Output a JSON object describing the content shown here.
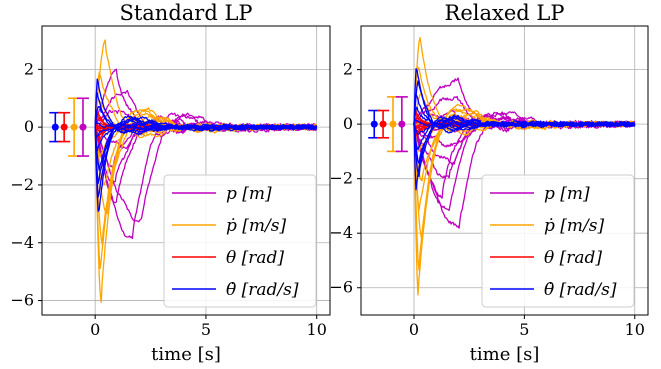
{
  "figure": {
    "background": "#ffffff"
  },
  "chart_data": [
    {
      "type": "line",
      "title": "Standard LP",
      "xlabel": "time [s]",
      "ylabel": "",
      "xlim": [
        -2.4,
        10.6
      ],
      "ylim": [
        -6.5,
        3.5
      ],
      "xticks": [
        0,
        5,
        10
      ],
      "yticks": [
        -6,
        -4,
        -2,
        0,
        2
      ],
      "grid": true,
      "legend_position": "lower-right",
      "legend": [
        {
          "label": "p  [m]",
          "color": "#bf00bf"
        },
        {
          "label": "ṗ  [m/s]",
          "color": "#ffa500"
        },
        {
          "label": "θ  [rad]",
          "color": "#ff0000"
        },
        {
          "label": "θ̇  [rad/s]",
          "color": "#0000ff"
        }
      ],
      "errorbars": [
        {
          "x": -1.8,
          "center": 0.0,
          "half_width": 0.5,
          "color": "#0000ff"
        },
        {
          "x": -1.4,
          "center": 0.0,
          "half_width": 0.5,
          "color": "#ff0000"
        },
        {
          "x": -0.95,
          "center": 0.0,
          "half_width": 1.0,
          "color": "#ffa500"
        },
        {
          "x": -0.55,
          "center": 0.0,
          "half_width": 1.0,
          "color": "#bf00bf"
        }
      ],
      "series_families": [
        {
          "name": "p",
          "color": "#bf00bf",
          "runs": 10,
          "peak_range": [
            -3.9,
            1.9
          ],
          "peak_time": [
            0.8,
            2.2
          ],
          "decay": 1.1,
          "noise": 0.12
        },
        {
          "name": "ṗ",
          "color": "#ffa500",
          "runs": 10,
          "peak_range": [
            -6.0,
            3.0
          ],
          "peak_time": [
            0.1,
            0.6
          ],
          "decay": 1.4,
          "noise": 0.1
        },
        {
          "name": "θ",
          "color": "#ff0000",
          "runs": 10,
          "peak_range": [
            -0.5,
            0.5
          ],
          "peak_time": [
            0.05,
            0.2
          ],
          "decay": 3.0,
          "noise": 0.05
        },
        {
          "name": "θ̇",
          "color": "#0000ff",
          "runs": 10,
          "peak_range": [
            -3.1,
            1.8
          ],
          "peak_time": [
            0.05,
            0.25
          ],
          "decay": 2.2,
          "noise": 0.09
        }
      ]
    },
    {
      "type": "line",
      "title": "Relaxed LP",
      "xlabel": "time [s]",
      "ylabel": "",
      "xlim": [
        -2.4,
        10.6
      ],
      "ylim": [
        -7.0,
        3.6
      ],
      "xticks": [
        0,
        5,
        10
      ],
      "yticks": [
        -6,
        -4,
        -2,
        0,
        2
      ],
      "grid": true,
      "legend_position": "lower-right",
      "legend": [
        {
          "label": "p  [m]",
          "color": "#bf00bf"
        },
        {
          "label": "ṗ  [m/s]",
          "color": "#ffa500"
        },
        {
          "label": "θ  [rad]",
          "color": "#ff0000"
        },
        {
          "label": "θ̇  [rad/s]",
          "color": "#0000ff"
        }
      ],
      "errorbars": [
        {
          "x": -1.8,
          "center": 0.0,
          "half_width": 0.5,
          "color": "#0000ff"
        },
        {
          "x": -1.4,
          "center": 0.0,
          "half_width": 0.5,
          "color": "#ff0000"
        },
        {
          "x": -0.95,
          "center": 0.0,
          "half_width": 1.0,
          "color": "#ffa500"
        },
        {
          "x": -0.55,
          "center": 0.0,
          "half_width": 1.0,
          "color": "#bf00bf"
        }
      ],
      "series_families": [
        {
          "name": "p",
          "color": "#bf00bf",
          "runs": 10,
          "peak_range": [
            -3.8,
            1.6
          ],
          "peak_time": [
            0.8,
            2.2
          ],
          "decay": 1.1,
          "noise": 0.12
        },
        {
          "name": "ṗ",
          "color": "#ffa500",
          "runs": 10,
          "peak_range": [
            -6.4,
            3.2
          ],
          "peak_time": [
            0.1,
            0.6
          ],
          "decay": 1.4,
          "noise": 0.1
        },
        {
          "name": "θ",
          "color": "#ff0000",
          "runs": 10,
          "peak_range": [
            -0.5,
            0.5
          ],
          "peak_time": [
            0.05,
            0.2
          ],
          "decay": 3.0,
          "noise": 0.05
        },
        {
          "name": "θ̇",
          "color": "#0000ff",
          "runs": 10,
          "peak_range": [
            -2.5,
            2.2
          ],
          "peak_time": [
            0.05,
            0.25
          ],
          "decay": 2.2,
          "noise": 0.09
        }
      ]
    }
  ]
}
